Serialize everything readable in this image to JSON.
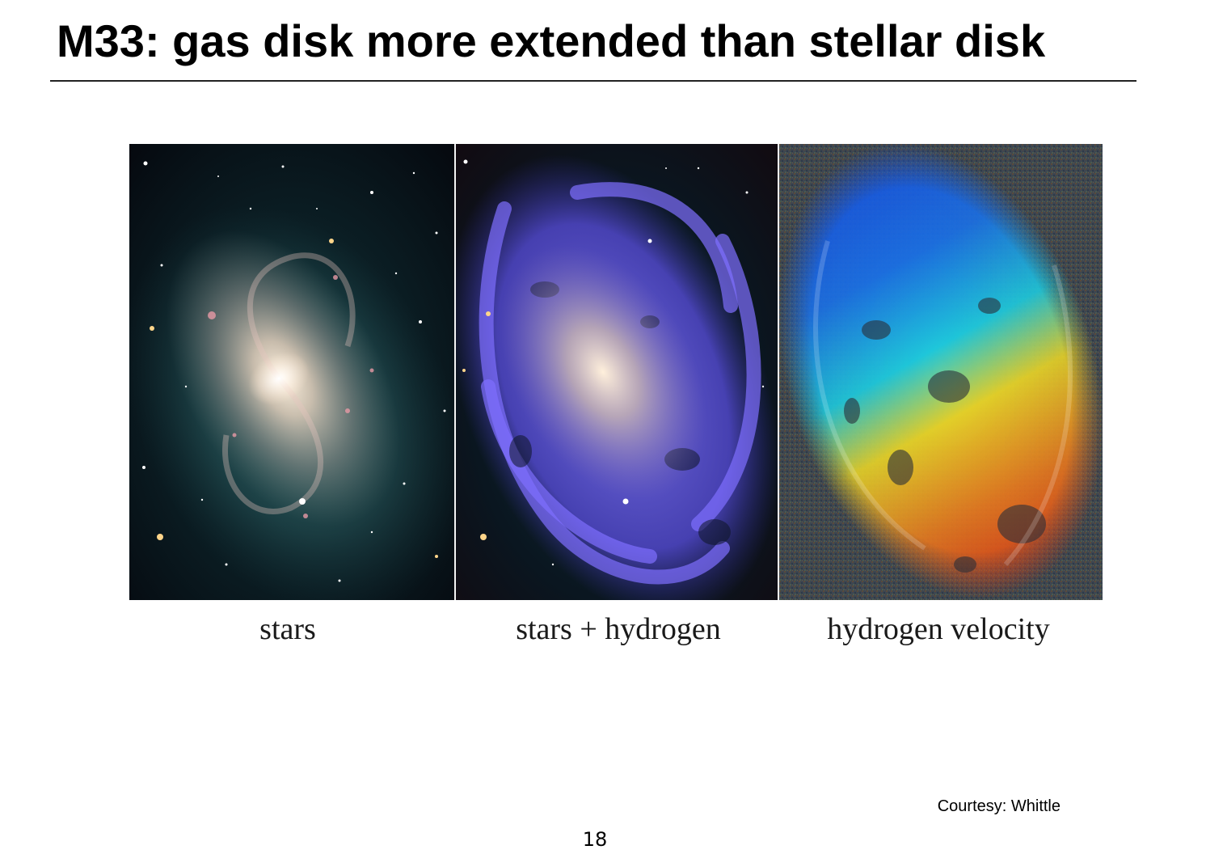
{
  "slide": {
    "title": "M33: gas disk more extended than stellar disk",
    "panels": [
      {
        "caption": "stars",
        "image": "galaxy-stars-image"
      },
      {
        "caption": "stars + hydrogen",
        "image": "galaxy-stars-hydrogen-image"
      },
      {
        "caption": "hydrogen velocity",
        "image": "galaxy-hydrogen-velocity-image"
      }
    ],
    "credit": "Courtesy: Whittle",
    "page_number": "18"
  },
  "colors": {
    "background": "#ffffff",
    "text": "#000000",
    "space": "#060a12",
    "hydrogen": "#6a5cff",
    "velocity_blue": "#1450e6",
    "velocity_cyan": "#1ec8dc",
    "velocity_yellow": "#e6d228",
    "velocity_red": "#dc3214"
  }
}
